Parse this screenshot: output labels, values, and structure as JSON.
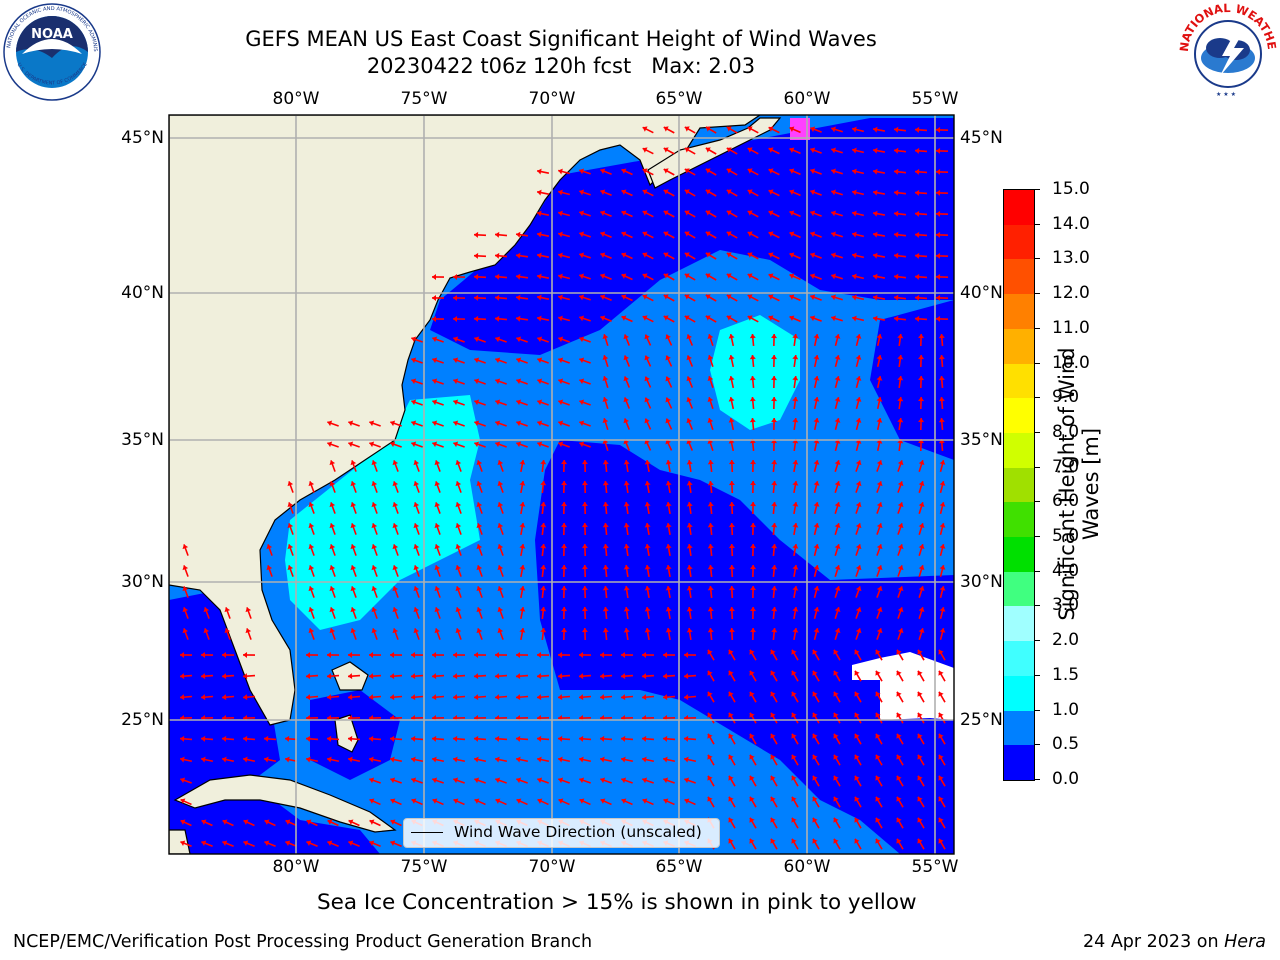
{
  "title": {
    "line1": "GEFS MEAN US East Coast Significant Height of Wind Waves",
    "line2": "20230422 t06z 120h fcst   Max: 2.03"
  },
  "map": {
    "lon_labels": [
      "80°W",
      "75°W",
      "70°W",
      "65°W",
      "60°W",
      "55°W"
    ],
    "lat_labels": [
      "45°N",
      "40°N",
      "35°N",
      "30°N",
      "25°N"
    ],
    "legend_label": "Wind Wave Direction (unscaled)",
    "extent": {
      "lon_min": -85,
      "lon_max": -54.5,
      "lat_min": 20.5,
      "lat_max": 45.8
    },
    "colors": {
      "land": "#f0efdc",
      "ocean_dark": "#0000ff",
      "ocean_mid": "#0080ff",
      "ocean_light": "#00ffff",
      "arrow": "#ff0000",
      "grid": "#b0b0b0"
    }
  },
  "colorbar": {
    "label_line1": "Significant Height of Wind",
    "label_line2": "Waves [m]",
    "ticks": [
      "0.0",
      "0.5",
      "1.0",
      "1.5",
      "2.0",
      "3.0",
      "4.0",
      "5.0",
      "6.0",
      "7.0",
      "8.0",
      "9.0",
      "10.0",
      "11.0",
      "12.0",
      "13.0",
      "14.0",
      "15.0"
    ],
    "colors": [
      "#0000ff",
      "#0080ff",
      "#00ffff",
      "#40ffff",
      "#a0ffff",
      "#40ff80",
      "#00e000",
      "#40e000",
      "#a0e000",
      "#d0ff00",
      "#ffff00",
      "#ffe000",
      "#ffb000",
      "#ff8000",
      "#ff5000",
      "#ff2000",
      "#ff0000"
    ]
  },
  "note": "Sea Ice Concentration > 15% is shown in pink to yellow",
  "footer": {
    "left": "NCEP/EMC/Verification Post Processing Product Generation Branch",
    "date": "24 Apr 2023 on ",
    "host": "Hera"
  },
  "logos": {
    "noaa_text": "NOAA",
    "noaa_ring": "NATIONAL OCEANIC AND ATMOSPHERIC ADMINISTRATION",
    "noaa_ring_bottom": "U.S. DEPARTMENT OF COMMERCE",
    "nws_ring": "NATIONAL WEATHER SERVICE"
  }
}
